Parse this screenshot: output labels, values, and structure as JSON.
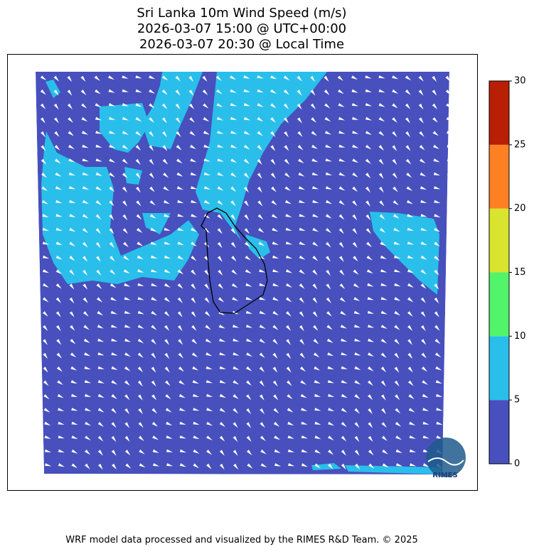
{
  "title": [
    "Sri Lanka 10m Wind Speed (m/s)",
    "2026-03-07 15:00 @ UTC+00:00",
    "2026-03-07 20:30 @ Local Time"
  ],
  "colorbar": {
    "ticks": [
      0,
      5,
      10,
      15,
      20,
      25,
      30
    ],
    "colors": [
      "#4750bd",
      "#29bfea",
      "#52f56a",
      "#d8e42e",
      "#fd8022",
      "#b91f04"
    ]
  },
  "logo": "RIMES",
  "footer": "WRF model data processed and visualized by the RIMES R&D Team. © 2025"
}
